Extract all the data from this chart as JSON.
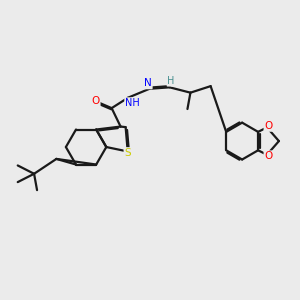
{
  "background_color": "#ebebeb",
  "bond_color": "#1a1a1a",
  "figsize": [
    3.0,
    3.0
  ],
  "dpi": 100,
  "atom_colors": {
    "O": "#ff0000",
    "N": "#0000ff",
    "S": "#cccc00",
    "H": "#4a9090",
    "C": "#1a1a1a"
  },
  "lw": 1.6
}
